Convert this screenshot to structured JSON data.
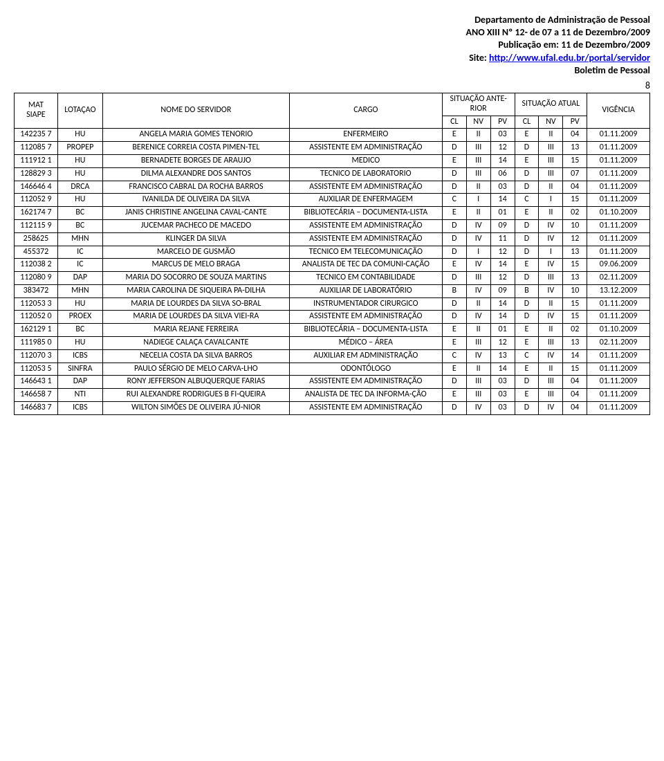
{
  "header": {
    "line1": "Departamento de Administração de Pessoal",
    "line2": "ANO XIII Nº 12- de 07 a 11 de Dezembro/2009",
    "line3": "Publicação em: 11 de Dezembro/2009",
    "line4_prefix": "Site: ",
    "line4_link": "http://www.ufal.edu.br/portal/servidor",
    "line5": "Boletim de Pessoal",
    "page_number": "8"
  },
  "table": {
    "head": {
      "mat": "MAT",
      "siape": "SIAPE",
      "lotacao": "LOTAÇAO",
      "nome": "NOME DO SERVIDOR",
      "cargo": "CARGO",
      "sit_ante": "SITUAÇÃO ANTE-RIOR",
      "sit_atual": "SITUAÇÃO ATUAL",
      "cl": "CL",
      "nv": "NV",
      "pv": "PV",
      "vigencia": "VIGÊNCIA"
    },
    "rows": [
      {
        "mat": "142235 7",
        "lot": "HU",
        "nome": "ANGELA MARIA GOMES TENORIO",
        "cargo": "ENFERMEIRO",
        "a_cl": "E",
        "a_nv": "II",
        "a_pv": "03",
        "b_cl": "E",
        "b_nv": "II",
        "b_pv": "04",
        "vig": "01.11.2009"
      },
      {
        "mat": "112085 7",
        "lot": "PROPEP",
        "nome": "BERENICE CORREIA COSTA PIMEN-TEL",
        "cargo": "ASSISTENTE EM ADMINISTRAÇÃO",
        "a_cl": "D",
        "a_nv": "III",
        "a_pv": "12",
        "b_cl": "D",
        "b_nv": "III",
        "b_pv": "13",
        "vig": "01.11.2009"
      },
      {
        "mat": "111912 1",
        "lot": "HU",
        "nome": "BERNADETE BORGES DE ARAUJO",
        "cargo": "MEDICO",
        "a_cl": "E",
        "a_nv": "III",
        "a_pv": "14",
        "b_cl": "E",
        "b_nv": "III",
        "b_pv": "15",
        "vig": "01.11.2009"
      },
      {
        "mat": "128829 3",
        "lot": "HU",
        "nome": "DILMA ALEXANDRE DOS SANTOS",
        "cargo": "TECNICO DE LABORATORIO",
        "a_cl": "D",
        "a_nv": "III",
        "a_pv": "06",
        "b_cl": "D",
        "b_nv": "III",
        "b_pv": "07",
        "vig": "01.11.2009"
      },
      {
        "mat": "146646 4",
        "lot": "DRCA",
        "nome": "FRANCISCO CABRAL DA ROCHA BARROS",
        "cargo": "ASSISTENTE EM ADMINISTRAÇÃO",
        "a_cl": "D",
        "a_nv": "II",
        "a_pv": "03",
        "b_cl": "D",
        "b_nv": "II",
        "b_pv": "04",
        "vig": "01.11.2009"
      },
      {
        "mat": "112052 9",
        "lot": "HU",
        "nome": "IVANILDA DE OLIVEIRA DA SILVA",
        "cargo": "AUXILIAR DE ENFERMAGEM",
        "a_cl": "C",
        "a_nv": "I",
        "a_pv": "14",
        "b_cl": "C",
        "b_nv": "I",
        "b_pv": "15",
        "vig": "01.11.2009"
      },
      {
        "mat": "162174 7",
        "lot": "BC",
        "nome": "JANIS CHRISTINE ANGELINA CAVAL-CANTE",
        "cargo": "BIBLIOTECÁRIA – DOCUMENTA-LISTA",
        "a_cl": "E",
        "a_nv": "II",
        "a_pv": "01",
        "b_cl": "E",
        "b_nv": "II",
        "b_pv": "02",
        "vig": "01.10.2009"
      },
      {
        "mat": "112115 9",
        "lot": "BC",
        "nome": "JUCEMAR PACHECO DE MACEDO",
        "cargo": "ASSISTENTE EM ADMINISTRAÇÃO",
        "a_cl": "D",
        "a_nv": "IV",
        "a_pv": "09",
        "b_cl": "D",
        "b_nv": "IV",
        "b_pv": "10",
        "vig": "01.11.2009"
      },
      {
        "mat": "258625",
        "lot": "MHN",
        "nome": "KLINGER DA SILVA",
        "cargo": "ASSISTENTE EM ADMINISTRAÇÃO",
        "a_cl": "D",
        "a_nv": "IV",
        "a_pv": "11",
        "b_cl": "D",
        "b_nv": "IV",
        "b_pv": "12",
        "vig": "01.11.2009"
      },
      {
        "mat": "455372",
        "lot": "IC",
        "nome": "MARCELO DE GUSMÃO",
        "cargo": "TECNICO EM TELECOMUNICAÇÃO",
        "a_cl": "D",
        "a_nv": "I",
        "a_pv": "12",
        "b_cl": "D",
        "b_nv": "I",
        "b_pv": "13",
        "vig": "01.11.2009"
      },
      {
        "mat": "112038 2",
        "lot": "IC",
        "nome": "MARCUS DE MELO BRAGA",
        "cargo": "ANALISTA DE TEC DA COMUNI-CAÇÃO",
        "a_cl": "E",
        "a_nv": "IV",
        "a_pv": "14",
        "b_cl": "E",
        "b_nv": "IV",
        "b_pv": "15",
        "vig": "09.06.2009"
      },
      {
        "mat": "112080 9",
        "lot": "DAP",
        "nome": "MARIA DO SOCORRO DE SOUZA MARTINS",
        "cargo": "TECNICO EM CONTABILIDADE",
        "a_cl": "D",
        "a_nv": "III",
        "a_pv": "12",
        "b_cl": "D",
        "b_nv": "III",
        "b_pv": "13",
        "vig": "02.11.2009"
      },
      {
        "mat": "383472",
        "lot": "MHN",
        "nome": "MARIA CAROLINA DE SIQUEIRA PA-DILHA",
        "cargo": "AUXILIAR DE LABORATÓRIO",
        "a_cl": "B",
        "a_nv": "IV",
        "a_pv": "09",
        "b_cl": "B",
        "b_nv": "IV",
        "b_pv": "10",
        "vig": "13.12.2009"
      },
      {
        "mat": "112053 3",
        "lot": "HU",
        "nome": "MARIA DE LOURDES DA SILVA SO-BRAL",
        "cargo": "INSTRUMENTADOR CIRURGICO",
        "a_cl": "D",
        "a_nv": "II",
        "a_pv": "14",
        "b_cl": "D",
        "b_nv": "II",
        "b_pv": "15",
        "vig": "01.11.2009"
      },
      {
        "mat": "112052 0",
        "lot": "PROEX",
        "nome": "MARIA DE LOURDES DA SILVA VIEI-RA",
        "cargo": "ASSISTENTE EM ADMINISTRAÇÃO",
        "a_cl": "D",
        "a_nv": "IV",
        "a_pv": "14",
        "b_cl": "D",
        "b_nv": "IV",
        "b_pv": "15",
        "vig": "01.11.2009"
      },
      {
        "mat": "162129 1",
        "lot": "BC",
        "nome": "MARIA REJANE FERREIRA",
        "cargo": "BIBLIOTECÁRIA – DOCUMENTA-LISTA",
        "a_cl": "E",
        "a_nv": "II",
        "a_pv": "01",
        "b_cl": "E",
        "b_nv": "II",
        "b_pv": "02",
        "vig": "01.10.2009"
      },
      {
        "mat": "111985 0",
        "lot": "HU",
        "nome": "NADIEGE CALAÇA CAVALCANTE",
        "cargo": "MÉDICO – ÁREA",
        "a_cl": "E",
        "a_nv": "III",
        "a_pv": "12",
        "b_cl": "E",
        "b_nv": "III",
        "b_pv": "13",
        "vig": "02.11.2009"
      },
      {
        "mat": "112070 3",
        "lot": "ICBS",
        "nome": "NECELIA COSTA DA SILVA BARROS",
        "cargo": "AUXILIAR EM ADMINISTRAÇÃO",
        "a_cl": "C",
        "a_nv": "IV",
        "a_pv": "13",
        "b_cl": "C",
        "b_nv": "IV",
        "b_pv": "14",
        "vig": "01.11.2009"
      },
      {
        "mat": "112053 5",
        "lot": "SINFRA",
        "nome": "PAULO SÉRGIO DE MELO CARVA-LHO",
        "cargo": "ODONTÓLOGO",
        "a_cl": "E",
        "a_nv": "II",
        "a_pv": "14",
        "b_cl": "E",
        "b_nv": "II",
        "b_pv": "15",
        "vig": "01.11.2009"
      },
      {
        "mat": "146643 1",
        "lot": "DAP",
        "nome": "RONY JEFFERSON ALBUQUERQUE FARIAS",
        "cargo": "ASSISTENTE EM ADMINISTRAÇÃO",
        "a_cl": "D",
        "a_nv": "III",
        "a_pv": "03",
        "b_cl": "D",
        "b_nv": "III",
        "b_pv": "04",
        "vig": "01.11.2009"
      },
      {
        "mat": "146658 7",
        "lot": "NTI",
        "nome": "RUI ALEXANDRE RODRIGUES B FI-QUEIRA",
        "cargo": "ANALISTA DE TEC DA INFORMA-ÇÃO",
        "a_cl": "E",
        "a_nv": "III",
        "a_pv": "03",
        "b_cl": "E",
        "b_nv": "III",
        "b_pv": "04",
        "vig": "01.11.2009"
      },
      {
        "mat": "146683 7",
        "lot": "ICBS",
        "nome": "WILTON SIMÕES DE OLIVEIRA JÚ-NIOR",
        "cargo": "ASSISTENTE EM ADMINISTRAÇÃO",
        "a_cl": "D",
        "a_nv": "IV",
        "a_pv": "03",
        "b_cl": "D",
        "b_nv": "IV",
        "b_pv": "04",
        "vig": "01.11.2009"
      }
    ]
  }
}
